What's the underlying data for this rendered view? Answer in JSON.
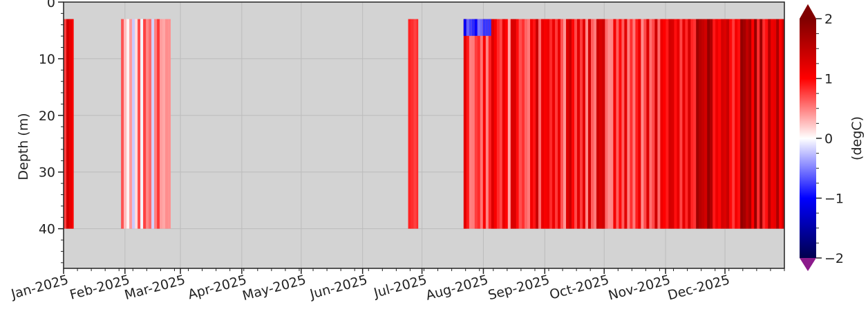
{
  "chart_data": {
    "type": "heatmap",
    "title": "",
    "xlabel": "",
    "ylabel": "Depth (m)",
    "colorbar_label": "(degC)",
    "x_categories": [
      "Jan-2025",
      "Feb-2025",
      "Mar-2025",
      "Apr-2025",
      "May-2025",
      "Jun-2025",
      "Jul-2025",
      "Aug-2025",
      "Sep-2025",
      "Oct-2025",
      "Nov-2025",
      "Dec-2025"
    ],
    "xlim": [
      "2025-01-01",
      "2025-12-31"
    ],
    "ylim": [
      47,
      0
    ],
    "y_ticks": [
      0,
      10,
      20,
      30,
      40
    ],
    "colorbar_ticks": [
      2,
      1,
      0,
      -1,
      -2
    ],
    "clim": [
      -2,
      2
    ],
    "colormap": "seismic",
    "missing_color": "#d3d3d3",
    "grid": true,
    "data_depth_range": [
      3,
      40
    ],
    "data_segments": [
      {
        "start": "2025-01-01",
        "end": "2025-01-06",
        "mean_value": 1.1
      },
      {
        "start": "2025-01-30",
        "end": "2025-02-24",
        "mean_value": 0.3
      },
      {
        "start": "2025-06-24",
        "end": "2025-06-29",
        "mean_value": 0.5
      },
      {
        "start": "2025-07-22",
        "end": "2025-08-19",
        "mean_value": 0.8
      },
      {
        "start": "2025-08-19",
        "end": "2025-09-30",
        "mean_value": 0.9
      },
      {
        "start": "2025-09-30",
        "end": "2025-11-15",
        "mean_value": 0.9
      },
      {
        "start": "2025-11-15",
        "end": "2025-12-31",
        "mean_value": 1.3
      }
    ]
  }
}
